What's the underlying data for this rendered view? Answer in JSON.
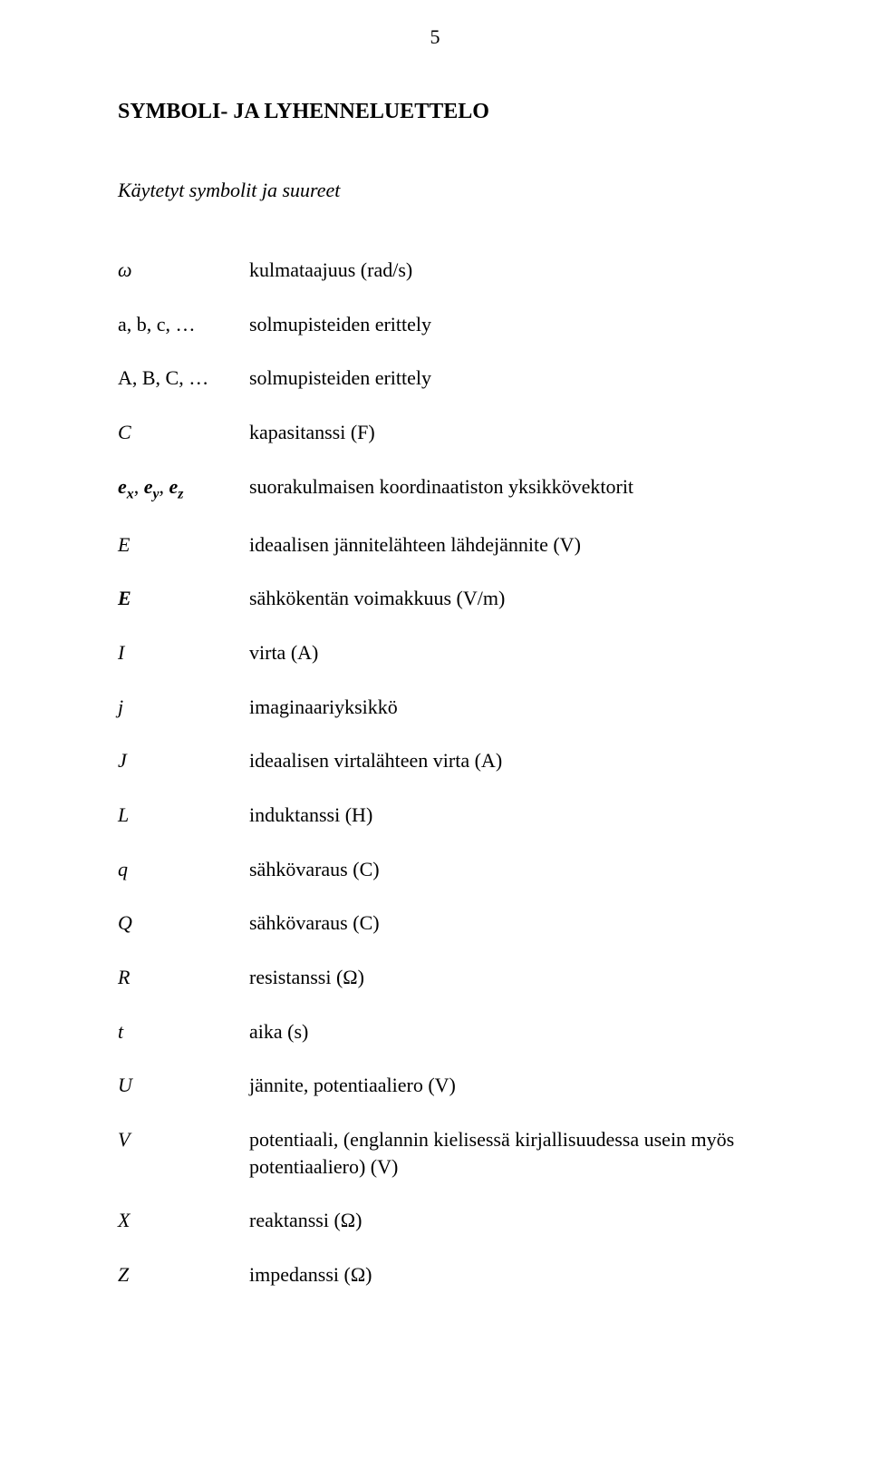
{
  "page_number": "5",
  "title": "SYMBOLI- JA LYHENNELUETTELO",
  "subtitle": "Käytetyt symbolit ja suureet",
  "rows": {
    "omega": {
      "desc": "kulmataajuus (rad/s)"
    },
    "abc": {
      "desc": "solmupisteiden erittely"
    },
    "ABC": {
      "desc": "solmupisteiden erittely"
    },
    "C": {
      "desc": "kapasitanssi (F)"
    },
    "exyz": {
      "desc": "suorakulmaisen koordinaatiston yksikkövektorit"
    },
    "E": {
      "desc": "ideaalisen jännitelähteen lähdejännite (V)"
    },
    "Ebold": {
      "desc": "sähkökentän voimakkuus (V/m)"
    },
    "I": {
      "desc": "virta (A)"
    },
    "j": {
      "desc": "imaginaariyksikkö"
    },
    "J": {
      "desc": "ideaalisen virtalähteen virta (A)"
    },
    "L": {
      "desc": "induktanssi (H)"
    },
    "q": {
      "desc": "sähkövaraus (C)"
    },
    "Q": {
      "desc": "sähkövaraus (C)"
    },
    "R": {
      "desc": "resistanssi (Ω)"
    },
    "t": {
      "desc": "aika (s)"
    },
    "U": {
      "desc": "jännite, potentiaaliero (V)"
    },
    "V": {
      "desc": "potentiaali, (englannin kielisessä kirjallisuudessa usein myös potentiaaliero) (V)"
    },
    "X": {
      "desc": "reaktanssi  (Ω)"
    },
    "Z": {
      "desc": "impedanssi (Ω)"
    }
  },
  "symbols": {
    "omega_glyph": "ω",
    "abc_prefix": "a, b, c, ",
    "ABC_prefix": "A, B, C, ",
    "ellipsis": "…",
    "C": "C",
    "e": "e",
    "x": "x",
    "y": "y",
    "z": "z",
    "comma": ", ",
    "E": "E",
    "I": "I",
    "j": "j",
    "J": "J",
    "L": "L",
    "q": "q",
    "Q": "Q",
    "R": "R",
    "t": "t",
    "U": "U",
    "V": "V",
    "X": "X",
    "Z": "Z"
  }
}
